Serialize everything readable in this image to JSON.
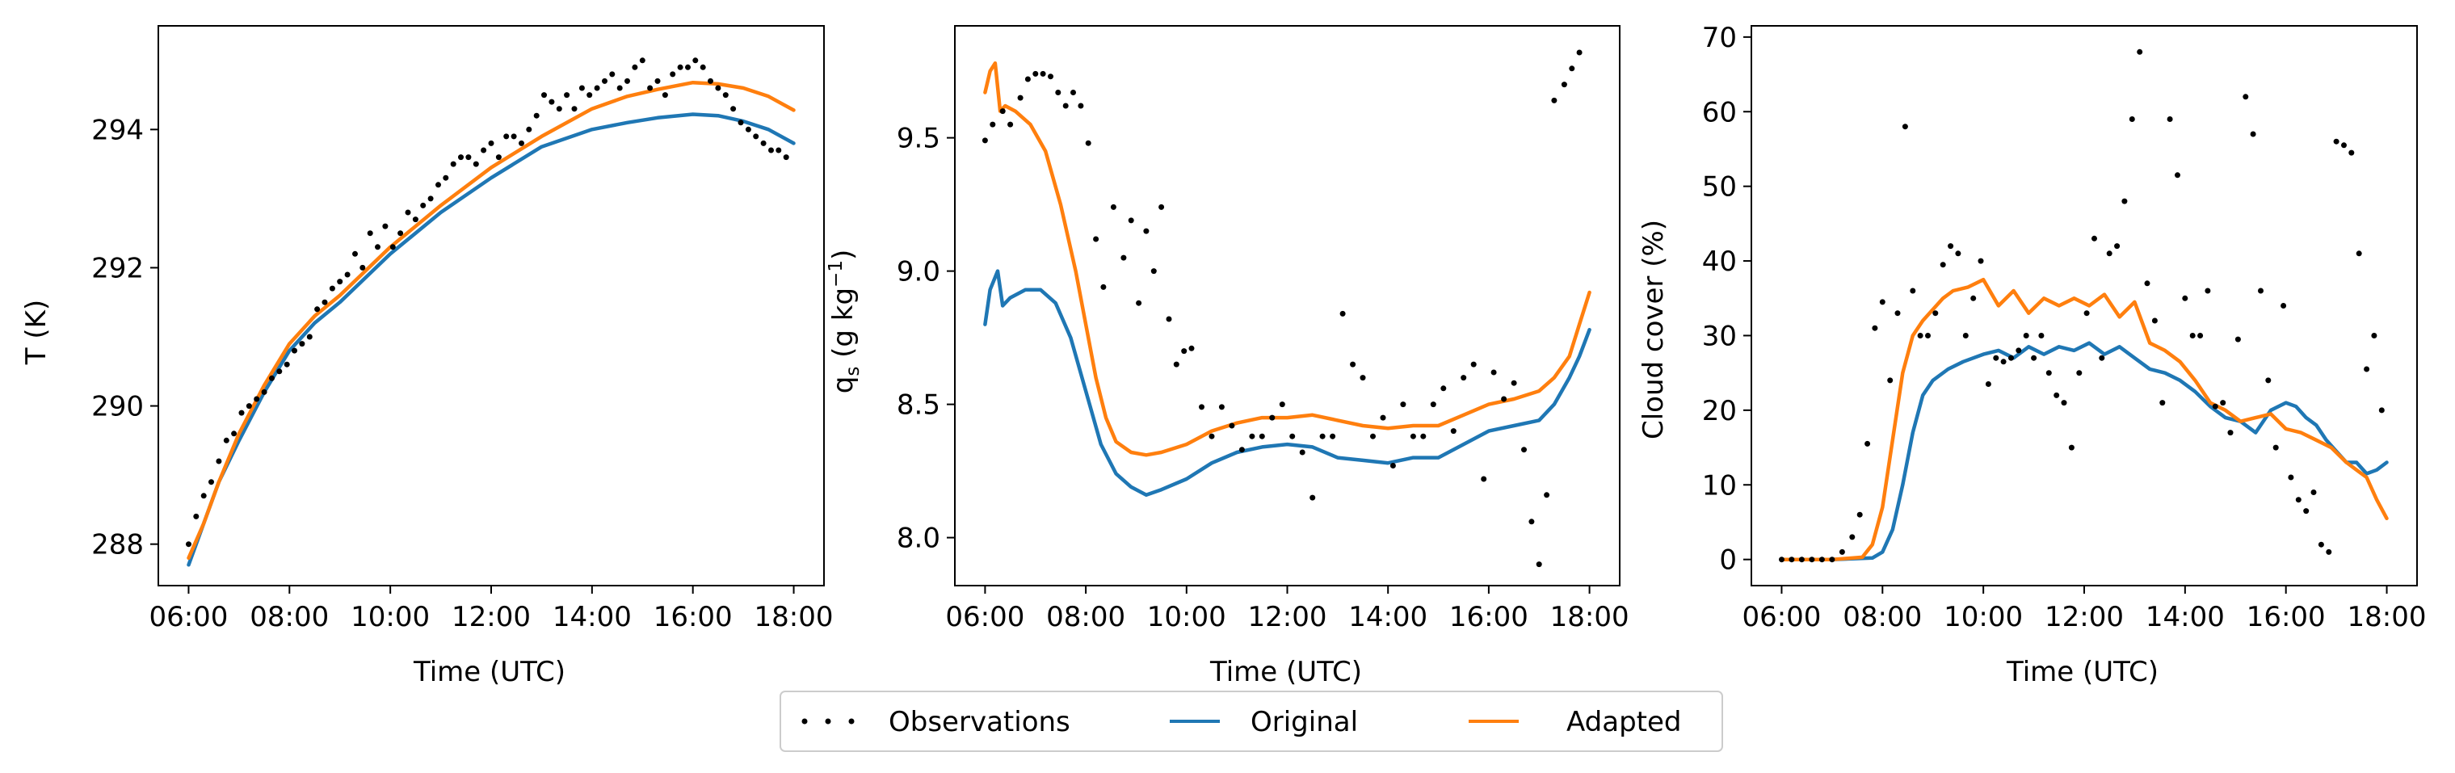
{
  "chart_data": [
    {
      "type": "line",
      "xlabel": "Time (UTC)",
      "ylabel": "T (K)",
      "xlim": [
        5.4,
        18.6
      ],
      "ylim": [
        287.4,
        295.5
      ],
      "xticks": [
        6,
        8,
        10,
        12,
        14,
        16,
        18
      ],
      "xtick_labels": [
        "06:00",
        "08:00",
        "10:00",
        "12:00",
        "14:00",
        "16:00",
        "18:00"
      ],
      "yticks": [
        288,
        290,
        292,
        294
      ],
      "ytick_labels": [
        "288",
        "290",
        "292",
        "294"
      ],
      "grid": false,
      "series": [
        {
          "name": "Original",
          "kind": "line",
          "color": "#1f77b4",
          "x": [
            6.0,
            6.3,
            6.6,
            7.0,
            7.5,
            8.0,
            8.5,
            9.0,
            10.0,
            11.0,
            12.0,
            13.0,
            14.0,
            14.7,
            15.3,
            16.0,
            16.5,
            17.0,
            17.5,
            18.0
          ],
          "y": [
            287.7,
            288.3,
            288.9,
            289.5,
            290.2,
            290.8,
            291.2,
            291.5,
            292.2,
            292.8,
            293.3,
            293.75,
            294.0,
            294.1,
            294.17,
            294.22,
            294.2,
            294.12,
            294.0,
            293.8
          ]
        },
        {
          "name": "Adapted",
          "kind": "line",
          "color": "#ff7f0e",
          "x": [
            6.0,
            6.3,
            6.6,
            7.0,
            7.5,
            8.0,
            8.5,
            9.0,
            10.0,
            11.0,
            12.0,
            13.0,
            14.0,
            14.7,
            15.3,
            16.0,
            16.5,
            17.0,
            17.5,
            18.0
          ],
          "y": [
            287.8,
            288.3,
            288.9,
            289.6,
            290.3,
            290.9,
            291.3,
            291.6,
            292.3,
            292.9,
            293.45,
            293.9,
            294.3,
            294.48,
            294.58,
            294.68,
            294.66,
            294.6,
            294.48,
            294.28
          ]
        },
        {
          "name": "Observations",
          "kind": "scatter",
          "color": "#000000",
          "x": [
            6.0,
            6.15,
            6.3,
            6.45,
            6.6,
            6.75,
            6.9,
            7.05,
            7.2,
            7.35,
            7.5,
            7.65,
            7.8,
            7.95,
            8.1,
            8.25,
            8.4,
            8.55,
            8.7,
            8.85,
            9.0,
            9.15,
            9.3,
            9.45,
            9.6,
            9.75,
            9.9,
            10.05,
            10.2,
            10.35,
            10.5,
            10.65,
            10.8,
            10.95,
            11.1,
            11.25,
            11.4,
            11.55,
            11.7,
            11.85,
            12.0,
            12.15,
            12.3,
            12.45,
            12.6,
            12.75,
            12.9,
            13.05,
            13.2,
            13.35,
            13.5,
            13.65,
            13.8,
            13.95,
            14.1,
            14.25,
            14.4,
            14.55,
            14.7,
            14.85,
            15.0,
            15.15,
            15.3,
            15.45,
            15.6,
            15.75,
            15.9,
            16.05,
            16.2,
            16.35,
            16.5,
            16.65,
            16.8,
            16.95,
            17.1,
            17.25,
            17.4,
            17.55,
            17.7,
            17.85
          ],
          "y": [
            288.0,
            288.4,
            288.7,
            288.9,
            289.2,
            289.5,
            289.6,
            289.9,
            290.0,
            290.1,
            290.2,
            290.4,
            290.5,
            290.6,
            290.8,
            290.9,
            291.0,
            291.4,
            291.5,
            291.7,
            291.8,
            291.9,
            292.2,
            292.0,
            292.5,
            292.3,
            292.6,
            292.3,
            292.5,
            292.8,
            292.7,
            292.9,
            293.0,
            293.2,
            293.3,
            293.5,
            293.6,
            293.6,
            293.5,
            293.7,
            293.8,
            293.6,
            293.9,
            293.9,
            293.8,
            294.0,
            294.2,
            294.5,
            294.4,
            294.3,
            294.5,
            294.3,
            294.6,
            294.5,
            294.6,
            294.7,
            294.8,
            294.6,
            294.7,
            294.9,
            295.0,
            294.6,
            294.7,
            294.5,
            294.8,
            294.9,
            294.9,
            295.0,
            294.9,
            294.7,
            294.6,
            294.5,
            294.3,
            294.1,
            294.0,
            293.9,
            293.8,
            293.7,
            293.7,
            293.6
          ]
        }
      ]
    },
    {
      "type": "line",
      "xlabel": "Time (UTC)",
      "ylabel": "q_s (g kg^-1)",
      "ylabel_parts": {
        "q": "q",
        "sub": "s",
        "open": " (g kg",
        "sup": "−1",
        "close": ")"
      },
      "xlim": [
        5.4,
        18.6
      ],
      "ylim": [
        7.82,
        9.92
      ],
      "xticks": [
        6,
        8,
        10,
        12,
        14,
        16,
        18
      ],
      "xtick_labels": [
        "06:00",
        "08:00",
        "10:00",
        "12:00",
        "14:00",
        "16:00",
        "18:00"
      ],
      "yticks": [
        8.0,
        8.5,
        9.0,
        9.5
      ],
      "ytick_labels": [
        "8.0",
        "8.5",
        "9.0",
        "9.5"
      ],
      "grid": false,
      "series": [
        {
          "name": "Original",
          "kind": "line",
          "color": "#1f77b4",
          "x": [
            6.0,
            6.1,
            6.25,
            6.35,
            6.5,
            6.8,
            7.1,
            7.4,
            7.7,
            8.0,
            8.3,
            8.6,
            8.9,
            9.2,
            9.5,
            10.0,
            10.5,
            11.0,
            11.5,
            12.0,
            12.5,
            13.0,
            13.5,
            14.0,
            14.5,
            15.0,
            15.5,
            16.0,
            16.5,
            17.0,
            17.3,
            17.6,
            17.8,
            18.0
          ],
          "y": [
            8.8,
            8.93,
            9.0,
            8.87,
            8.9,
            8.93,
            8.93,
            8.88,
            8.75,
            8.55,
            8.35,
            8.24,
            8.19,
            8.16,
            8.18,
            8.22,
            8.28,
            8.32,
            8.34,
            8.35,
            8.34,
            8.3,
            8.29,
            8.28,
            8.3,
            8.3,
            8.35,
            8.4,
            8.42,
            8.44,
            8.5,
            8.6,
            8.68,
            8.78
          ]
        },
        {
          "name": "Adapted",
          "kind": "line",
          "color": "#ff7f0e",
          "x": [
            6.0,
            6.1,
            6.2,
            6.3,
            6.4,
            6.6,
            6.9,
            7.2,
            7.5,
            7.8,
            8.0,
            8.2,
            8.4,
            8.6,
            8.9,
            9.2,
            9.5,
            10.0,
            10.5,
            11.0,
            11.5,
            12.0,
            12.5,
            13.0,
            13.5,
            14.0,
            14.5,
            15.0,
            15.5,
            16.0,
            16.5,
            17.0,
            17.3,
            17.6,
            17.8,
            18.0
          ],
          "y": [
            9.67,
            9.75,
            9.78,
            9.6,
            9.62,
            9.6,
            9.55,
            9.45,
            9.25,
            9.0,
            8.8,
            8.6,
            8.45,
            8.36,
            8.32,
            8.31,
            8.32,
            8.35,
            8.4,
            8.43,
            8.45,
            8.45,
            8.46,
            8.44,
            8.42,
            8.41,
            8.42,
            8.42,
            8.46,
            8.5,
            8.52,
            8.55,
            8.6,
            8.68,
            8.8,
            8.92
          ]
        },
        {
          "name": "Observations",
          "kind": "scatter",
          "color": "#000000",
          "x": [
            6.0,
            6.15,
            6.35,
            6.5,
            6.7,
            6.85,
            7.0,
            7.15,
            7.3,
            7.45,
            7.6,
            7.75,
            7.9,
            8.05,
            8.2,
            8.35,
            8.55,
            8.75,
            8.9,
            9.05,
            9.2,
            9.35,
            9.5,
            9.65,
            9.8,
            9.95,
            10.1,
            10.3,
            10.5,
            10.7,
            10.9,
            11.1,
            11.3,
            11.5,
            11.7,
            11.9,
            12.1,
            12.3,
            12.5,
            12.7,
            12.9,
            13.1,
            13.3,
            13.5,
            13.7,
            13.9,
            14.1,
            14.3,
            14.5,
            14.7,
            14.9,
            15.1,
            15.3,
            15.5,
            15.7,
            15.9,
            16.1,
            16.3,
            16.5,
            16.7,
            16.85,
            17.0,
            17.15,
            17.3,
            17.5,
            17.65,
            17.8
          ],
          "y": [
            9.49,
            9.55,
            9.6,
            9.55,
            9.65,
            9.72,
            9.74,
            9.74,
            9.73,
            9.67,
            9.62,
            9.67,
            9.62,
            9.48,
            9.12,
            8.94,
            9.24,
            9.05,
            9.19,
            8.88,
            9.15,
            9.0,
            9.24,
            8.82,
            8.65,
            8.7,
            8.71,
            8.49,
            8.38,
            8.49,
            8.42,
            8.33,
            8.38,
            8.38,
            8.45,
            8.5,
            8.38,
            8.32,
            8.15,
            8.38,
            8.38,
            8.84,
            8.65,
            8.6,
            8.38,
            8.45,
            8.27,
            8.5,
            8.38,
            8.38,
            8.5,
            8.56,
            8.4,
            8.6,
            8.65,
            8.22,
            8.62,
            8.52,
            8.58,
            8.33,
            8.06,
            7.9,
            8.16,
            9.64,
            9.7,
            9.76,
            9.82
          ]
        }
      ]
    },
    {
      "type": "line",
      "xlabel": "Time (UTC)",
      "ylabel": "Cloud cover (%)",
      "xlim": [
        5.4,
        18.6
      ],
      "ylim": [
        -3.5,
        71.5
      ],
      "xticks": [
        6,
        8,
        10,
        12,
        14,
        16,
        18
      ],
      "xtick_labels": [
        "06:00",
        "08:00",
        "10:00",
        "12:00",
        "14:00",
        "16:00",
        "18:00"
      ],
      "yticks": [
        0,
        10,
        20,
        30,
        40,
        50,
        60,
        70
      ],
      "ytick_labels": [
        "0",
        "10",
        "20",
        "30",
        "40",
        "50",
        "60",
        "70"
      ],
      "grid": false,
      "series": [
        {
          "name": "Original",
          "kind": "line",
          "color": "#1f77b4",
          "x": [
            6.0,
            7.0,
            7.8,
            8.0,
            8.2,
            8.4,
            8.6,
            8.8,
            9.0,
            9.3,
            9.6,
            10.0,
            10.3,
            10.6,
            10.9,
            11.2,
            11.5,
            11.8,
            12.1,
            12.4,
            12.7,
            13.0,
            13.3,
            13.6,
            13.9,
            14.2,
            14.5,
            14.8,
            15.1,
            15.4,
            15.7,
            16.0,
            16.2,
            16.4,
            16.6,
            16.8,
            17.0,
            17.2,
            17.4,
            17.6,
            17.8,
            18.0
          ],
          "y": [
            0.0,
            0.0,
            0.2,
            1.0,
            4.0,
            10.0,
            17.0,
            22.0,
            24.0,
            25.5,
            26.5,
            27.5,
            28.0,
            27.0,
            28.5,
            27.5,
            28.5,
            28.0,
            29.0,
            27.5,
            28.5,
            27.0,
            25.5,
            25.0,
            24.0,
            22.5,
            20.5,
            19.0,
            18.5,
            17.0,
            20.0,
            21.0,
            20.5,
            19.0,
            18.0,
            16.0,
            14.5,
            13.0,
            13.0,
            11.5,
            12.0,
            13.0
          ]
        },
        {
          "name": "Adapted",
          "kind": "line",
          "color": "#ff7f0e",
          "x": [
            6.0,
            7.0,
            7.6,
            7.8,
            8.0,
            8.2,
            8.4,
            8.6,
            8.8,
            9.0,
            9.2,
            9.4,
            9.7,
            10.0,
            10.3,
            10.6,
            10.9,
            11.2,
            11.5,
            11.8,
            12.1,
            12.4,
            12.7,
            13.0,
            13.3,
            13.6,
            13.9,
            14.2,
            14.5,
            14.8,
            15.1,
            15.4,
            15.7,
            16.0,
            16.3,
            16.6,
            16.9,
            17.2,
            17.4,
            17.6,
            17.8,
            18.0
          ],
          "y": [
            0.0,
            0.0,
            0.3,
            2.0,
            7.0,
            16.0,
            25.0,
            30.0,
            32.0,
            33.5,
            35.0,
            36.0,
            36.5,
            37.5,
            34.0,
            36.0,
            33.0,
            35.0,
            34.0,
            35.0,
            34.0,
            35.5,
            32.5,
            34.5,
            29.0,
            28.0,
            26.5,
            24.0,
            21.0,
            20.0,
            18.5,
            19.0,
            19.5,
            17.5,
            17.0,
            16.0,
            15.0,
            13.0,
            12.0,
            11.0,
            8.0,
            5.5
          ]
        },
        {
          "name": "Observations",
          "kind": "scatter",
          "color": "#000000",
          "x": [
            6.0,
            6.2,
            6.4,
            6.6,
            6.8,
            7.0,
            7.2,
            7.4,
            7.55,
            7.7,
            7.85,
            8.0,
            8.15,
            8.3,
            8.45,
            8.6,
            8.75,
            8.9,
            9.05,
            9.2,
            9.35,
            9.5,
            9.65,
            9.8,
            9.95,
            10.1,
            10.25,
            10.4,
            10.55,
            10.7,
            10.85,
            11.0,
            11.15,
            11.3,
            11.45,
            11.6,
            11.75,
            11.9,
            12.05,
            12.2,
            12.35,
            12.5,
            12.65,
            12.8,
            12.95,
            13.1,
            13.25,
            13.4,
            13.55,
            13.7,
            13.85,
            14.0,
            14.15,
            14.3,
            14.45,
            14.6,
            14.75,
            14.9,
            15.05,
            15.2,
            15.35,
            15.5,
            15.65,
            15.8,
            15.95,
            16.1,
            16.25,
            16.4,
            16.55,
            16.7,
            16.85,
            17.0,
            17.15,
            17.3,
            17.45,
            17.6,
            17.75,
            17.9
          ],
          "y": [
            0.0,
            0.0,
            0.0,
            0.0,
            0.0,
            0.0,
            1.0,
            3.0,
            6.0,
            15.5,
            31.0,
            34.5,
            24.0,
            33.0,
            58.0,
            36.0,
            30.0,
            30.0,
            33.0,
            39.5,
            42.0,
            41.0,
            30.0,
            35.0,
            40.0,
            23.5,
            27.0,
            26.5,
            27.0,
            28.0,
            30.0,
            27.0,
            30.0,
            25.0,
            22.0,
            21.0,
            15.0,
            25.0,
            33.0,
            43.0,
            27.0,
            41.0,
            42.0,
            48.0,
            59.0,
            68.0,
            37.0,
            32.0,
            21.0,
            59.0,
            51.5,
            35.0,
            30.0,
            30.0,
            36.0,
            20.5,
            21.0,
            17.0,
            29.5,
            62.0,
            57.0,
            36.0,
            24.0,
            15.0,
            34.0,
            11.0,
            8.0,
            6.5,
            9.0,
            2.0,
            1.0,
            56.0,
            55.5,
            54.5,
            41.0,
            25.5,
            30.0,
            20.0
          ]
        }
      ]
    }
  ],
  "legend": {
    "placement": "lower-center",
    "items": [
      {
        "label": "Observations",
        "marker": "dots",
        "color": "#000000"
      },
      {
        "label": "Original",
        "marker": "line",
        "color": "#1f77b4"
      },
      {
        "label": "Adapted",
        "marker": "line",
        "color": "#ff7f0e"
      }
    ]
  }
}
